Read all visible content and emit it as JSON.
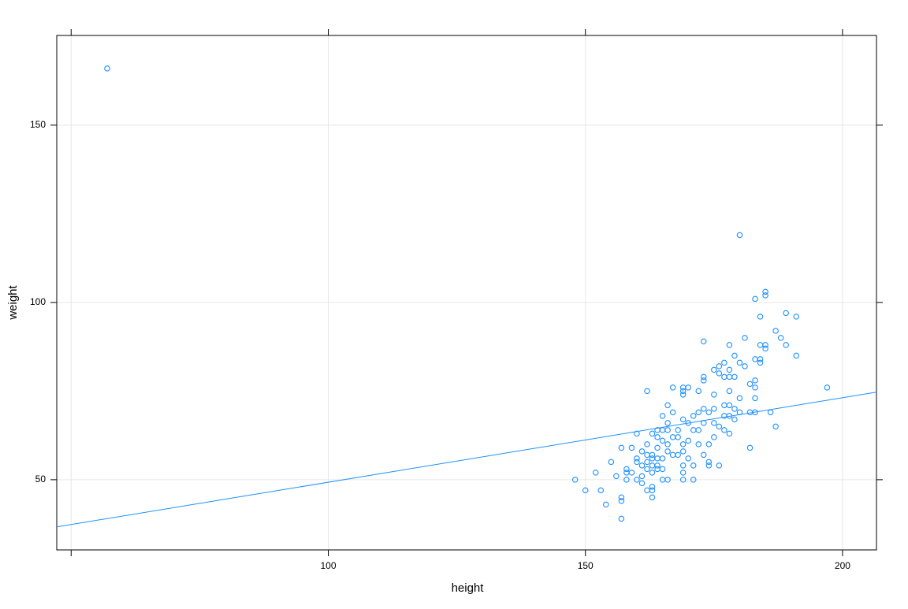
{
  "chart_data": {
    "type": "scatter",
    "xlabel": "height",
    "ylabel": "weight",
    "xlim": [
      47.2,
      206.6
    ],
    "ylim": [
      30.2,
      175.3
    ],
    "xticks": [
      {
        "value": 50,
        "label": null
      },
      100,
      150,
      200
    ],
    "yticks": [
      50,
      100,
      150
    ],
    "grid": true,
    "series": [
      {
        "color": "#1e90ff",
        "x": [
          148,
          150,
          152,
          153,
          154,
          155,
          156,
          157,
          157,
          157,
          157,
          158,
          158,
          158,
          159,
          159,
          160,
          160,
          160,
          160,
          161,
          161,
          161,
          161,
          162,
          162,
          162,
          162,
          162,
          162,
          163,
          163,
          163,
          163,
          163,
          163,
          163,
          163,
          164,
          164,
          164,
          164,
          164,
          164,
          165,
          165,
          165,
          165,
          165,
          165,
          166,
          166,
          166,
          166,
          166,
          166,
          167,
          167,
          167,
          167,
          168,
          168,
          168,
          169,
          169,
          169,
          169,
          169,
          169,
          169,
          169,
          169,
          170,
          170,
          170,
          170,
          171,
          171,
          171,
          171,
          172,
          172,
          172,
          172,
          173,
          173,
          173,
          173,
          173,
          173,
          174,
          174,
          174,
          174,
          175,
          175,
          175,
          175,
          175,
          176,
          176,
          176,
          176,
          177,
          177,
          177,
          177,
          177,
          178,
          178,
          178,
          178,
          178,
          178,
          178,
          179,
          179,
          179,
          179,
          180,
          180,
          180,
          180,
          181,
          181,
          182,
          182,
          182,
          183,
          183,
          183,
          183,
          183,
          183,
          184,
          184,
          184,
          184,
          185,
          185,
          185,
          185,
          186,
          187,
          187,
          188,
          189,
          189,
          191,
          191,
          197,
          57
        ],
        "values": [
          50,
          47,
          52,
          47,
          43,
          55,
          51,
          59,
          45,
          44,
          39,
          53,
          52,
          50,
          59,
          52,
          63,
          56,
          55,
          50,
          58,
          54,
          51,
          49,
          75,
          60,
          57,
          55,
          53,
          47,
          63,
          57,
          56,
          54,
          52,
          48,
          47,
          45,
          64,
          62,
          59,
          56,
          54,
          53,
          68,
          64,
          61,
          56,
          53,
          50,
          71,
          66,
          64,
          60,
          58,
          50,
          76,
          69,
          62,
          57,
          64,
          62,
          57,
          76,
          75,
          74,
          67,
          60,
          58,
          54,
          52,
          50,
          76,
          66,
          61,
          56,
          68,
          64,
          54,
          50,
          75,
          69,
          64,
          60,
          89,
          79,
          78,
          70,
          66,
          57,
          69,
          60,
          55,
          54,
          81,
          74,
          70,
          66,
          62,
          82,
          80,
          65,
          54,
          83,
          79,
          71,
          68,
          64,
          88,
          81,
          79,
          75,
          71,
          68,
          63,
          85,
          79,
          70,
          67,
          119,
          83,
          73,
          69,
          90,
          82,
          77,
          69,
          59,
          101,
          84,
          78,
          76,
          73,
          69,
          96,
          88,
          84,
          83,
          103,
          102,
          88,
          87,
          69,
          92,
          65,
          90,
          97,
          88,
          96,
          85,
          76,
          166
        ]
      }
    ],
    "fit_line": {
      "color": "#1e90ff",
      "x": [
        47.2,
        206.6
      ],
      "values": [
        36.7,
        74.7
      ]
    }
  }
}
